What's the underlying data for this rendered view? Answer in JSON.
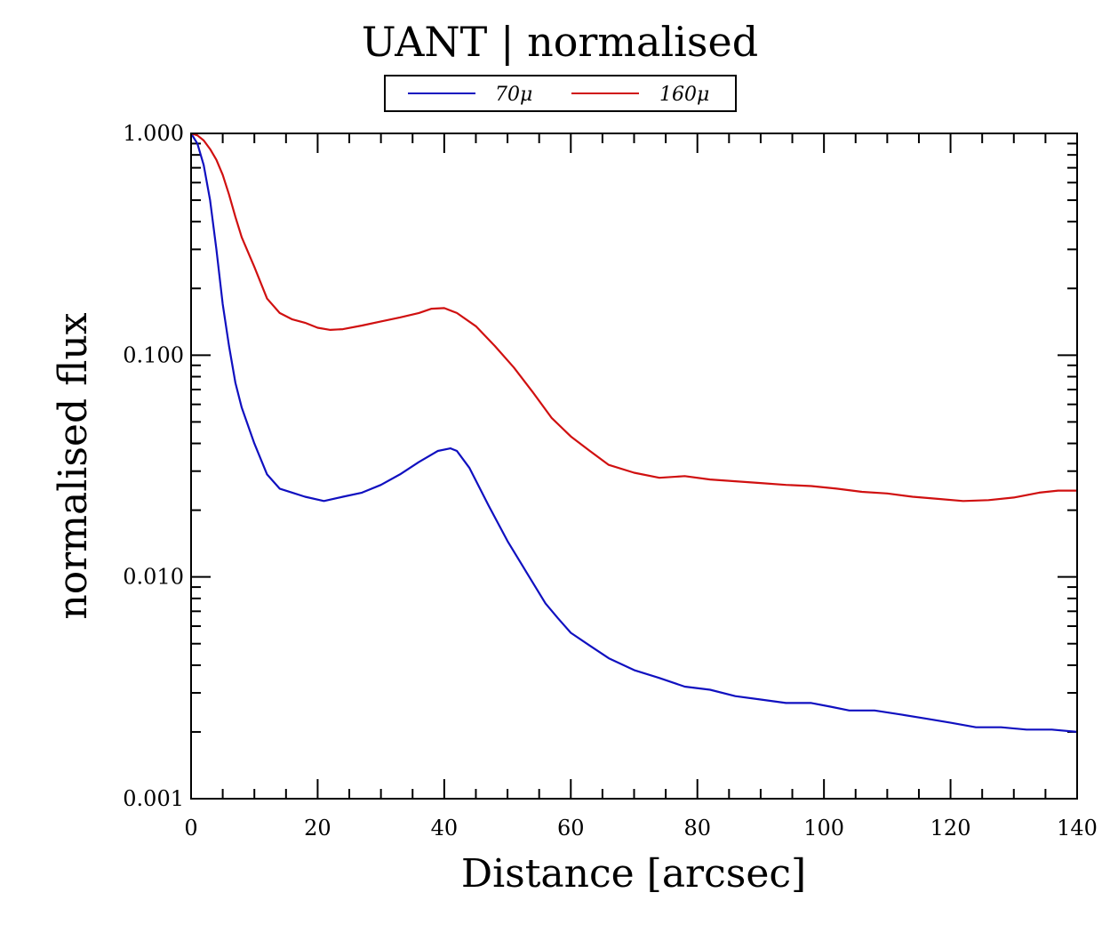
{
  "chart_data": {
    "type": "line",
    "title": "UANT | normalised",
    "xlabel": "Distance [arcsec]",
    "ylabel": "normalised flux",
    "xlim": [
      0,
      140
    ],
    "ylim": [
      0.001,
      1.0
    ],
    "yscale": "log",
    "grid": false,
    "legend_position": "top-center",
    "xticks": [
      0,
      20,
      40,
      60,
      80,
      100,
      120,
      140
    ],
    "xtick_labels": [
      "0",
      "20",
      "40",
      "60",
      "80",
      "100",
      "120",
      "140"
    ],
    "yticks": [
      0.001,
      0.01,
      0.1,
      1.0
    ],
    "ytick_labels": [
      "0.001",
      "0.010",
      "0.100",
      "1.000"
    ],
    "series": [
      {
        "name": "70μ",
        "color": "#1010c0",
        "x": [
          0,
          1,
          2,
          3,
          4,
          5,
          6,
          7,
          8,
          10,
          12,
          14,
          16,
          18,
          21,
          24,
          27,
          30,
          33,
          36,
          39,
          41,
          42,
          44,
          47,
          50,
          53,
          56,
          58,
          60,
          63,
          66,
          70,
          74,
          78,
          82,
          86,
          90,
          94,
          98,
          101,
          104,
          108,
          112,
          116,
          120,
          124,
          128,
          132,
          136,
          140
        ],
        "y": [
          1.0,
          0.9,
          0.72,
          0.5,
          0.3,
          0.17,
          0.11,
          0.075,
          0.058,
          0.04,
          0.029,
          0.025,
          0.024,
          0.023,
          0.022,
          0.023,
          0.024,
          0.026,
          0.029,
          0.033,
          0.037,
          0.038,
          0.037,
          0.031,
          0.021,
          0.0145,
          0.0105,
          0.0076,
          0.0065,
          0.0056,
          0.0049,
          0.0043,
          0.0038,
          0.0035,
          0.0032,
          0.0031,
          0.0029,
          0.0028,
          0.0027,
          0.0027,
          0.0026,
          0.0025,
          0.0025,
          0.0024,
          0.0023,
          0.0022,
          0.0021,
          0.0021,
          0.00205,
          0.00205,
          0.002
        ]
      },
      {
        "name": "160μ",
        "color": "#d01010",
        "x": [
          0,
          1,
          2,
          3,
          4,
          5,
          6,
          7,
          8,
          10,
          12,
          14,
          16,
          18,
          20,
          22,
          24,
          27,
          30,
          33,
          36,
          38,
          40,
          42,
          45,
          48,
          51,
          54,
          57,
          60,
          63,
          66,
          70,
          74,
          78,
          82,
          86,
          90,
          94,
          98,
          102,
          106,
          110,
          114,
          118,
          122,
          126,
          130,
          134,
          137,
          140
        ],
        "y": [
          1.0,
          0.98,
          0.93,
          0.85,
          0.76,
          0.65,
          0.53,
          0.42,
          0.34,
          0.25,
          0.18,
          0.155,
          0.145,
          0.14,
          0.133,
          0.13,
          0.131,
          0.136,
          0.142,
          0.148,
          0.155,
          0.162,
          0.163,
          0.155,
          0.135,
          0.11,
          0.088,
          0.068,
          0.052,
          0.043,
          0.037,
          0.032,
          0.0295,
          0.028,
          0.0285,
          0.0275,
          0.027,
          0.0265,
          0.026,
          0.0257,
          0.025,
          0.0242,
          0.0238,
          0.023,
          0.0225,
          0.022,
          0.0222,
          0.0228,
          0.024,
          0.0245,
          0.0245
        ]
      }
    ]
  }
}
